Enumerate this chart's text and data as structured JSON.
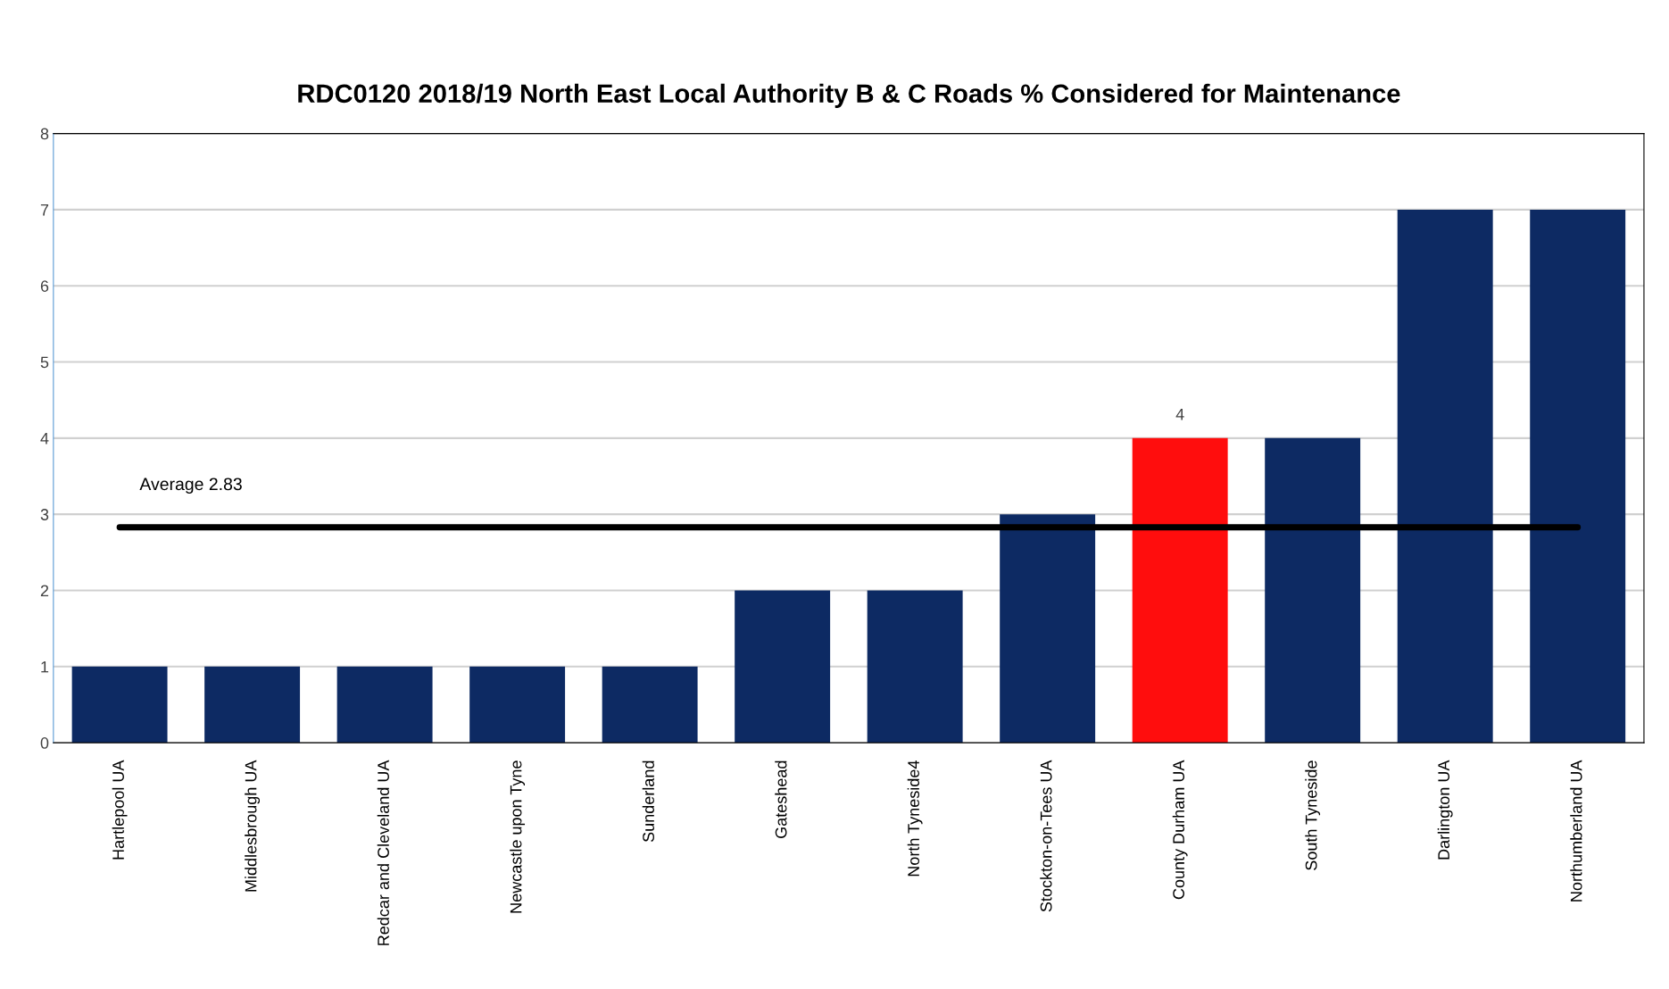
{
  "chart_data": {
    "type": "bar",
    "title": "RDC0120 2018/19 North East Local Authority B & C Roads % Considered for Maintenance",
    "categories": [
      "Hartlepool UA",
      "Middlesbrough UA",
      "Redcar and Cleveland UA",
      "Newcastle upon Tyne",
      "Sunderland",
      "Gateshead",
      "North Tyneside4",
      "Stockton-on-Tees UA",
      "County Durham UA",
      "South Tyneside",
      "Darlington UA",
      "Northumberland UA"
    ],
    "values": [
      1,
      1,
      1,
      1,
      1,
      2,
      2,
      3,
      4,
      4,
      7,
      7
    ],
    "colors": [
      "#0d2a63",
      "#0d2a63",
      "#0d2a63",
      "#0d2a63",
      "#0d2a63",
      "#0d2a63",
      "#0d2a63",
      "#0d2a63",
      "#ff0d0d",
      "#0d2a63",
      "#0d2a63",
      "#0d2a63"
    ],
    "value_labels": [
      null,
      null,
      null,
      null,
      null,
      null,
      null,
      null,
      "4",
      null,
      null,
      null
    ],
    "ref_lines": [
      {
        "axis": "y",
        "value": 2.83,
        "label": "Average 2.83",
        "color": "#000000"
      }
    ],
    "ylim": [
      0,
      8
    ],
    "yticks": [
      0,
      1,
      2,
      3,
      4,
      5,
      6,
      7,
      8
    ],
    "grid": "y",
    "legend": false
  }
}
